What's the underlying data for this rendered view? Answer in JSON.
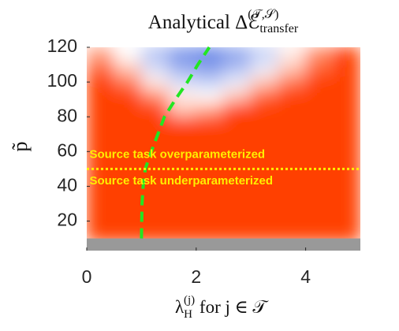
{
  "chart_data": {
    "type": "heatmap",
    "title": {
      "text": "Analytical Δℰ",
      "subscript": "transfer",
      "superscript": "(𝒯,𝒮)"
    },
    "x_label": {
      "symbol": "λ",
      "subscript": "H",
      "superscript": "(j)",
      "rest": " for j ∈ 𝒯"
    },
    "y_label": "p̃",
    "xlim": [
      0,
      5
    ],
    "xticks": [
      0,
      2,
      4
    ],
    "ylim": [
      3,
      120
    ],
    "yticks": [
      20,
      40,
      60,
      80,
      100,
      120
    ],
    "x_edges": [
      0,
      0.5,
      1,
      1.5,
      2,
      2.5,
      3,
      3.5,
      4,
      4.5,
      5
    ],
    "y_edges": [
      8,
      16,
      24,
      32,
      40,
      48,
      56,
      64,
      72,
      80,
      88,
      96,
      104,
      112,
      120
    ],
    "z": [
      [
        1,
        1,
        1,
        1,
        1,
        1,
        1,
        1,
        1,
        1
      ],
      [
        1,
        1,
        1,
        1,
        1,
        1,
        1,
        1,
        1,
        1
      ],
      [
        1,
        1,
        1,
        1,
        1,
        1,
        1,
        1,
        1,
        1
      ],
      [
        1,
        1,
        1,
        1,
        1,
        1,
        1,
        1,
        1,
        1
      ],
      [
        1,
        1,
        1,
        1,
        1,
        1,
        1,
        1,
        1,
        1
      ],
      [
        1,
        1,
        1,
        1,
        1,
        1,
        1,
        1,
        1,
        1
      ],
      [
        1,
        1,
        1,
        1,
        1,
        1,
        1,
        1,
        1,
        1
      ],
      [
        1,
        1,
        1,
        1,
        1,
        1,
        1,
        1,
        1,
        1
      ],
      [
        1,
        1,
        1,
        1,
        1,
        1,
        1,
        1,
        1,
        1
      ],
      [
        1,
        1,
        1,
        0.3,
        0.5,
        1,
        1,
        1,
        1,
        1
      ],
      [
        1,
        1,
        0.6,
        0.1,
        0,
        0.3,
        0.8,
        1,
        1,
        1
      ],
      [
        1,
        0.7,
        0.1,
        -0.2,
        -0.3,
        -0.1,
        0.3,
        0.7,
        1,
        1
      ],
      [
        0.8,
        0.3,
        -0.2,
        -0.5,
        -0.6,
        -0.4,
        -0.1,
        0.3,
        0.8,
        1
      ],
      [
        0.5,
        0,
        -0.4,
        -0.7,
        -0.8,
        -0.6,
        -0.3,
        0.1,
        0.6,
        1
      ]
    ],
    "colormap": [
      {
        "value": -1,
        "color": "#3a62e0"
      },
      {
        "value": 0,
        "color": "#ffffff"
      },
      {
        "value": 1,
        "color": "#ff4000"
      }
    ],
    "mask": {
      "below": 10,
      "color": "#999999"
    },
    "lines": [
      {
        "x": [
          1.0,
          1.01,
          1.03,
          1.07,
          1.18,
          1.3,
          1.42,
          1.62,
          1.84,
          2.03,
          2.24
        ],
        "y": [
          10,
          30,
          40,
          50,
          60,
          70,
          80,
          90,
          100,
          110,
          120
        ],
        "color": "#22e622",
        "style": "dashed"
      },
      {
        "x": [
          0,
          5
        ],
        "y": [
          50,
          50
        ],
        "color": "#ffee00",
        "style": "dotted"
      }
    ],
    "annotations": [
      {
        "text": "Source task overparameterized",
        "x": 0.05,
        "y": 58,
        "color": "#ffee00"
      },
      {
        "text": "Source task underparameterized",
        "x": 0.05,
        "y": 43,
        "color": "#ffee00"
      }
    ]
  }
}
